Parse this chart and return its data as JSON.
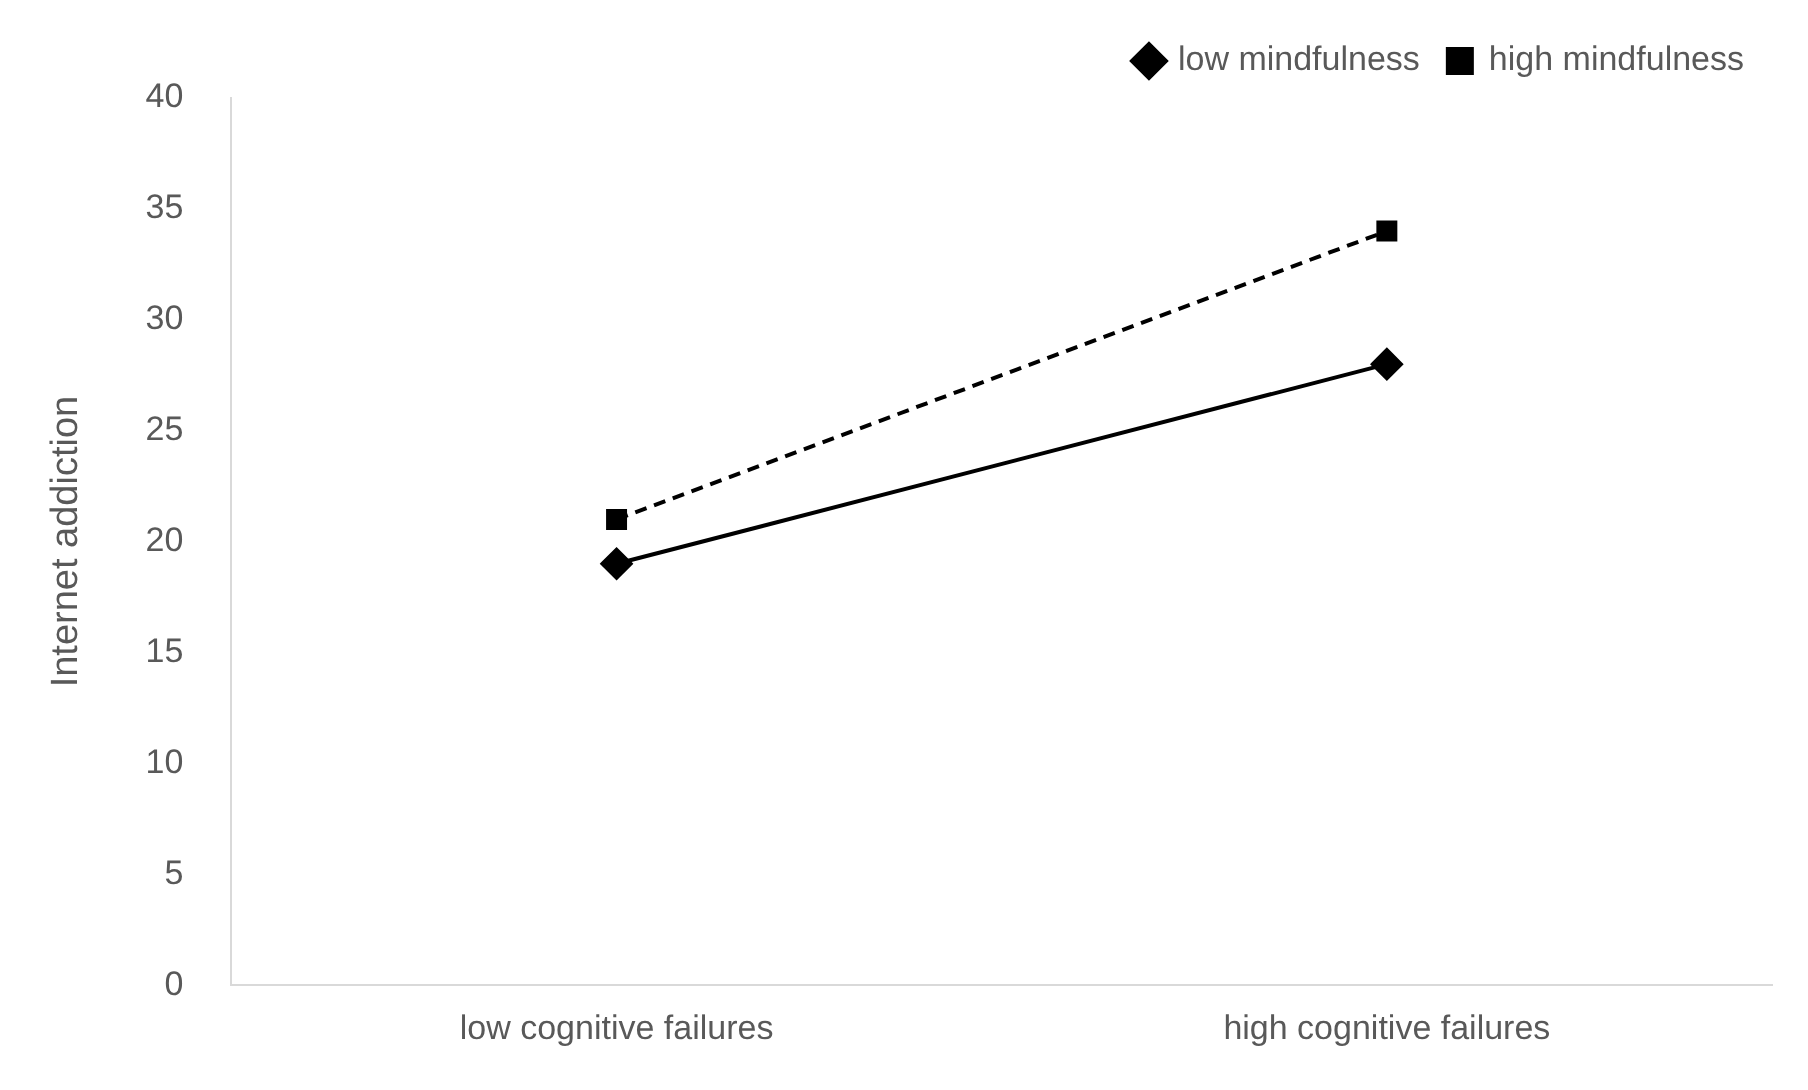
{
  "chart_data": {
    "type": "line",
    "ylabel": "Internet addiction",
    "categories": [
      "low cognitive failures",
      "high cognitive failures"
    ],
    "series": [
      {
        "name": "low mindfulness",
        "color": "#000000",
        "values": [
          19,
          28
        ],
        "marker": "diamond",
        "line_style": "solid"
      },
      {
        "name": "high mindfulness",
        "color": "#000000",
        "values": [
          21,
          34
        ],
        "marker": "square",
        "line_style": "dashed"
      }
    ],
    "ylim": [
      0,
      40
    ],
    "yticks": [
      0,
      5,
      10,
      15,
      20,
      25,
      30,
      35,
      40
    ],
    "grid": false,
    "legend": "top right"
  }
}
